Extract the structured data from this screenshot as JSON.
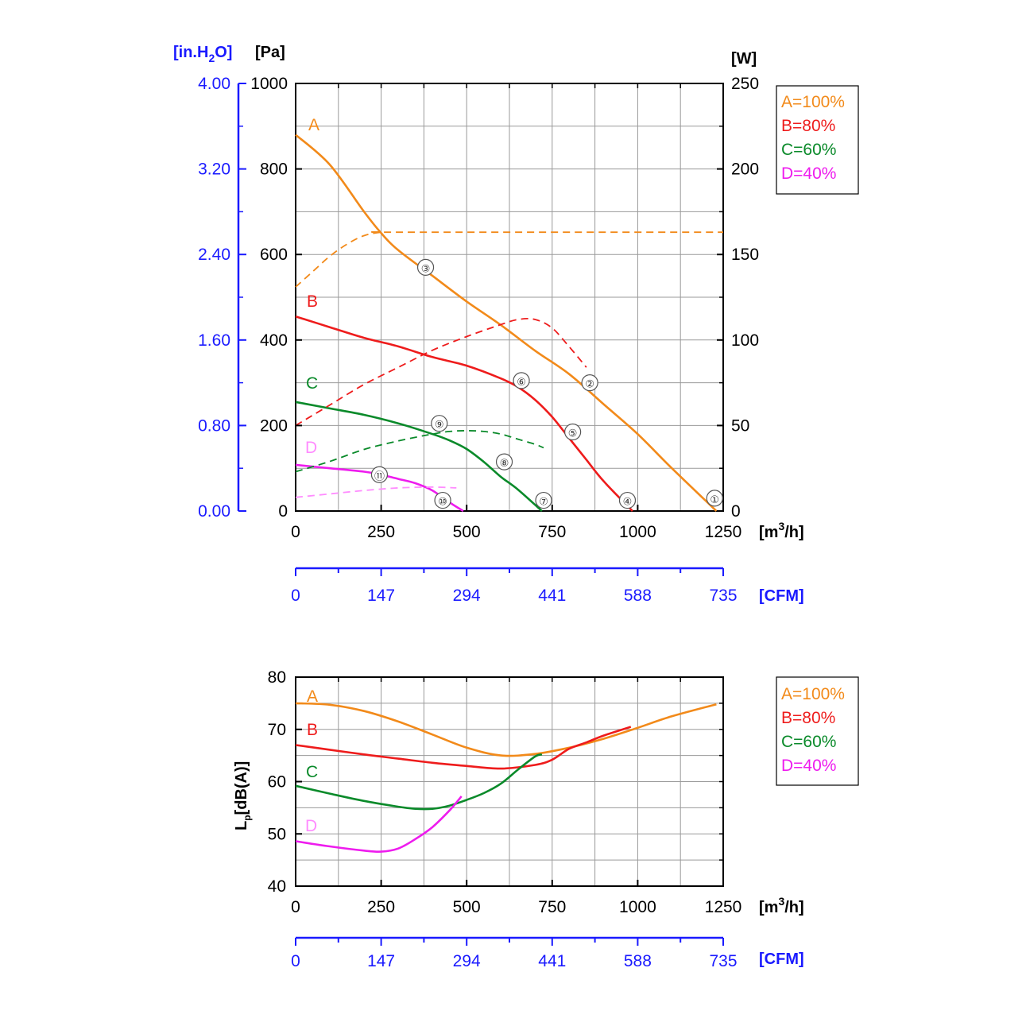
{
  "colors": {
    "A": "#f28a1a",
    "B": "#ee1c1c",
    "C": "#0a8a2a",
    "D": "#ee1cee",
    "D_label": "#ff8cff",
    "blue": "#1a1aff",
    "grid": "#9a9a9a"
  },
  "units": {
    "inh2o": "[in.H",
    "inh2o_sub": "2",
    "inh2o_end": "O]",
    "pa": "[Pa]",
    "w": "[W]",
    "m3h_1": "[m",
    "m3h_sup": "3",
    "m3h_2": "/h]",
    "cfm": "[CFM]",
    "lp_main": "L",
    "lp_sub": "p",
    "lp_end": "[dB(A)]"
  },
  "legend": [
    "A=100%",
    "B=80%",
    "C=60%",
    "D=40%"
  ],
  "curve_labels": [
    "A",
    "B",
    "C",
    "D"
  ],
  "chart_data": [
    {
      "type": "line",
      "xlim": [
        0,
        1250
      ],
      "ylim": [
        0,
        1000
      ],
      "y2lim": [
        0,
        250
      ],
      "x_ticks": [
        "0",
        "250",
        "500",
        "750",
        "1000",
        "1250"
      ],
      "y_ticks": [
        "0",
        "200",
        "400",
        "600",
        "800",
        "1000"
      ],
      "y_ticks_inh2o": [
        "0.00",
        "0.80",
        "1.60",
        "2.40",
        "3.20",
        "4.00"
      ],
      "y2_ticks": [
        "0",
        "50",
        "100",
        "150",
        "200",
        "250"
      ],
      "cfm_ticks": [
        "0",
        "147",
        "294",
        "441",
        "588",
        "735"
      ],
      "grid": true,
      "series": [
        {
          "name": "A",
          "kind": "pressure",
          "x": [
            0,
            100,
            200,
            250,
            300,
            400,
            500,
            600,
            700,
            800,
            900,
            1000,
            1100,
            1230
          ],
          "y": [
            880,
            810,
            700,
            650,
            610,
            550,
            490,
            435,
            375,
            320,
            250,
            180,
            100,
            0
          ]
        },
        {
          "name": "B",
          "kind": "pressure",
          "x": [
            0,
            100,
            200,
            300,
            400,
            500,
            600,
            650,
            700,
            750,
            800,
            850,
            900,
            985
          ],
          "y": [
            455,
            430,
            405,
            385,
            360,
            340,
            310,
            290,
            260,
            220,
            170,
            120,
            70,
            0
          ]
        },
        {
          "name": "C",
          "kind": "pressure",
          "x": [
            0,
            100,
            200,
            300,
            400,
            450,
            500,
            550,
            600,
            650,
            720
          ],
          "y": [
            255,
            240,
            225,
            205,
            180,
            165,
            145,
            115,
            80,
            50,
            0
          ]
        },
        {
          "name": "D",
          "kind": "pressure",
          "x": [
            0,
            100,
            200,
            250,
            300,
            350,
            400,
            450,
            490
          ],
          "y": [
            108,
            100,
            92,
            85,
            75,
            65,
            48,
            20,
            0
          ]
        },
        {
          "name": "A",
          "kind": "power",
          "x": [
            0,
            50,
            100,
            150,
            200,
            250,
            300,
            1250
          ],
          "y": [
            131,
            140,
            149,
            156,
            161,
            163,
            163,
            163
          ]
        },
        {
          "name": "B",
          "kind": "power",
          "x": [
            0,
            100,
            200,
            300,
            400,
            500,
            600,
            650,
            700,
            750,
            800,
            850
          ],
          "y": [
            50,
            62,
            74,
            84,
            94,
            102,
            109,
            112,
            112,
            107,
            96,
            84
          ]
        },
        {
          "name": "C",
          "kind": "power",
          "x": [
            0,
            100,
            200,
            300,
            400,
            450,
            500,
            550,
            600,
            650,
            700,
            725
          ],
          "y": [
            23,
            29,
            36,
            41,
            45,
            46.5,
            47,
            46.5,
            45,
            42,
            39,
            37
          ]
        },
        {
          "name": "D",
          "kind": "power",
          "x": [
            0,
            100,
            200,
            300,
            400,
            470
          ],
          "y": [
            8,
            10,
            12,
            13.5,
            14,
            13.5
          ]
        }
      ],
      "markers": [
        {
          "label": "①",
          "x": 1225,
          "y": 30
        },
        {
          "label": "②",
          "x": 860,
          "y": 300
        },
        {
          "label": "③",
          "x": 380,
          "y": 570
        },
        {
          "label": "④",
          "x": 970,
          "y": 25
        },
        {
          "label": "⑤",
          "x": 810,
          "y": 185
        },
        {
          "label": "⑥",
          "x": 660,
          "y": 305
        },
        {
          "label": "⑦",
          "x": 725,
          "y": 25
        },
        {
          "label": "⑧",
          "x": 610,
          "y": 115
        },
        {
          "label": "⑨",
          "x": 420,
          "y": 205
        },
        {
          "label": "⑩",
          "x": 430,
          "y": 25
        },
        {
          "label": "⑪",
          "x": 245,
          "y": 85
        }
      ]
    },
    {
      "type": "line",
      "xlim": [
        0,
        1250
      ],
      "ylim": [
        40,
        80
      ],
      "x_ticks": [
        "0",
        "250",
        "500",
        "750",
        "1000",
        "1250"
      ],
      "y_ticks": [
        "40",
        "50",
        "60",
        "70",
        "80"
      ],
      "cfm_ticks": [
        "0",
        "147",
        "294",
        "441",
        "588",
        "735"
      ],
      "grid": true,
      "series": [
        {
          "name": "A",
          "x": [
            0,
            100,
            200,
            300,
            400,
            500,
            600,
            700,
            800,
            900,
            1000,
            1100,
            1230
          ],
          "y": [
            75,
            74.7,
            73.5,
            71.5,
            69,
            66.5,
            65,
            65.3,
            66.5,
            68.2,
            70.3,
            72.5,
            74.8
          ]
        },
        {
          "name": "B",
          "x": [
            0,
            100,
            200,
            300,
            400,
            500,
            600,
            700,
            750,
            800,
            850,
            900,
            980
          ],
          "y": [
            67,
            66.1,
            65.2,
            64.4,
            63.6,
            63,
            62.5,
            63.2,
            64.2,
            66.3,
            67.5,
            68.8,
            70.5
          ]
        },
        {
          "name": "C",
          "x": [
            0,
            100,
            200,
            300,
            350,
            400,
            450,
            500,
            550,
            600,
            650,
            700,
            720
          ],
          "y": [
            59.2,
            57.7,
            56.3,
            55.2,
            54.8,
            54.8,
            55.4,
            56.5,
            57.8,
            59.6,
            62.3,
            64.8,
            65.2
          ]
        },
        {
          "name": "D",
          "x": [
            0,
            100,
            200,
            250,
            300,
            350,
            400,
            450,
            485
          ],
          "y": [
            48.6,
            47.6,
            46.8,
            46.6,
            47.2,
            49,
            51.3,
            54.5,
            57.2
          ]
        }
      ]
    }
  ]
}
